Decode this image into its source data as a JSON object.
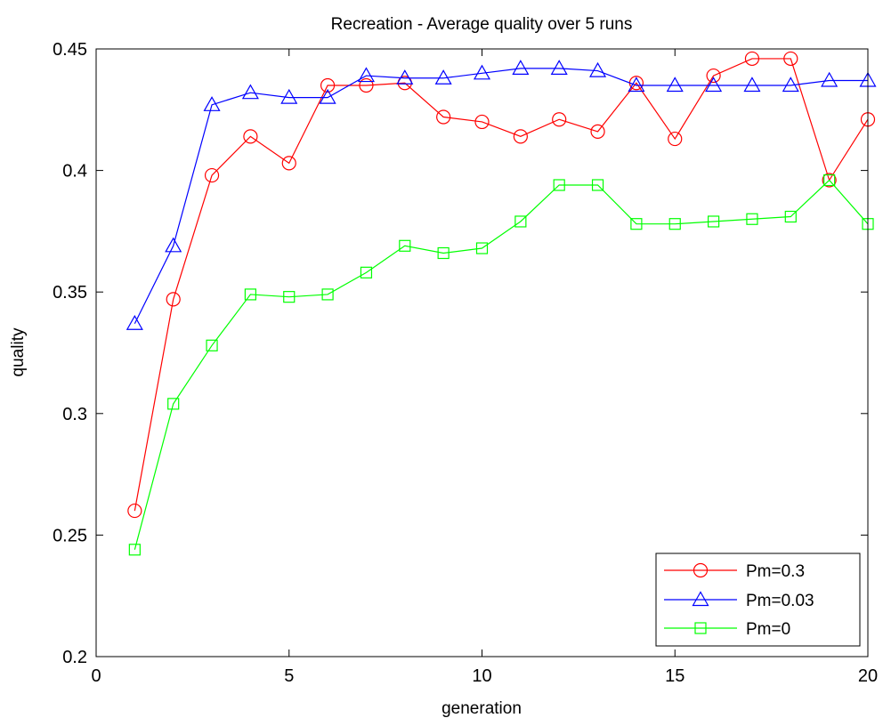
{
  "chart_data": {
    "type": "line",
    "title": "Recreation -  Average quality over 5 runs",
    "xlabel": "generation",
    "ylabel": "quality",
    "xlim": [
      0,
      20
    ],
    "ylim": [
      0.2,
      0.45
    ],
    "xticks": [
      0,
      5,
      10,
      15,
      20
    ],
    "yticks": [
      0.2,
      0.25,
      0.3,
      0.35,
      0.4,
      0.45
    ],
    "xtick_labels": [
      "0",
      "5",
      "10",
      "15",
      "20"
    ],
    "ytick_labels": [
      "0.2",
      "0.25",
      "0.3",
      "0.35",
      "0.4",
      "0.45"
    ],
    "grid": false,
    "legend_position": "bottom-right",
    "x": [
      1,
      2,
      3,
      4,
      5,
      6,
      7,
      8,
      9,
      10,
      11,
      12,
      13,
      14,
      15,
      16,
      17,
      18,
      19,
      20
    ],
    "series": [
      {
        "name": "Pm=0.3",
        "color": "#ff0000",
        "marker": "circle",
        "values": [
          0.26,
          0.347,
          0.398,
          0.414,
          0.403,
          0.435,
          0.435,
          0.436,
          0.422,
          0.42,
          0.414,
          0.421,
          0.416,
          0.436,
          0.413,
          0.439,
          0.446,
          0.446,
          0.396,
          0.421
        ]
      },
      {
        "name": "Pm=0.03",
        "color": "#0000ff",
        "marker": "triangle",
        "values": [
          0.337,
          0.369,
          0.427,
          0.432,
          0.43,
          0.43,
          0.439,
          0.438,
          0.438,
          0.44,
          0.442,
          0.442,
          0.441,
          0.435,
          0.435,
          0.435,
          0.435,
          0.435,
          0.437,
          0.437
        ]
      },
      {
        "name": "Pm=0",
        "color": "#00ff00",
        "marker": "square",
        "values": [
          0.244,
          0.304,
          0.328,
          0.349,
          0.348,
          0.349,
          0.358,
          0.369,
          0.366,
          0.368,
          0.379,
          0.394,
          0.394,
          0.378,
          0.378,
          0.379,
          0.38,
          0.381,
          0.396,
          0.378
        ]
      }
    ]
  }
}
